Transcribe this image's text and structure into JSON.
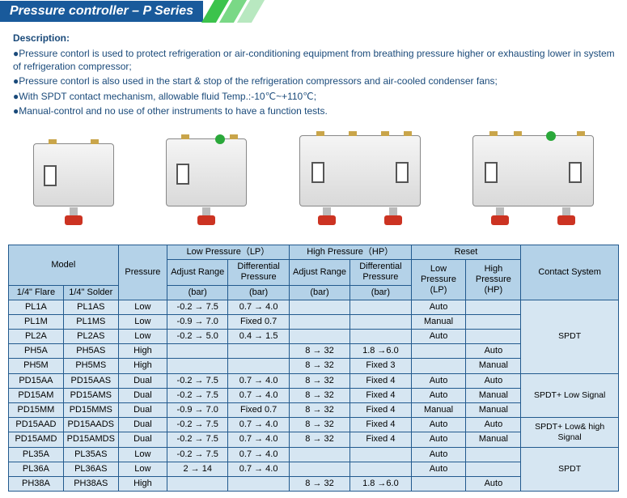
{
  "header": {
    "title": "Pressure controller – P Series"
  },
  "description": {
    "title": "Description:",
    "items": [
      "●Pressure contorl is used to protect refrigeration or air-conditioning equipment from breathing pressure higher or exhausting lower in system of refrigeration compressor;",
      "●Pressure contorl is also used in the start & stop of the refrigeration compressors and air-cooled condenser fans;",
      "●With SPDT contact mechanism, allowable fluid Temp.:-10℃~+110℃;",
      "●Manual-control and no use of other instruments to have a function tests."
    ]
  },
  "table": {
    "head": {
      "model": "Model",
      "pressure": "Pressure",
      "low_pressure": "Low Pressure（LP）",
      "high_pressure": "High Pressure（HP）",
      "reset": "Reset",
      "contact_system": "Contact System",
      "flare": "1/4\" Flare",
      "solder": "1/4\" Solder",
      "adjust_range": "Adjust Range",
      "diff_pressure": "Differential Pressure",
      "bar": "(bar)",
      "low_pressure_short": "Low Pressure (LP)",
      "high_pressure_short": "High Pressure (HP)"
    },
    "contact_groups": [
      {
        "label": "SPDT",
        "span": 5
      },
      {
        "label": "SPDT+ Low Signal",
        "span": 3
      },
      {
        "label": "SPDT+ Low& high Signal",
        "span": 2
      },
      {
        "label": "SPDT",
        "span": 3
      }
    ],
    "rows": [
      {
        "flare": "PL1A",
        "solder": "PL1AS",
        "pressure": "Low",
        "lp_adj": "-0.2 → 7.5",
        "lp_diff": "0.7 → 4.0",
        "hp_adj": "",
        "hp_diff": "",
        "reset_lp": "Auto",
        "reset_hp": ""
      },
      {
        "flare": "PL1M",
        "solder": "PL1MS",
        "pressure": "Low",
        "lp_adj": "-0.9 → 7.0",
        "lp_diff": "Fixed 0.7",
        "hp_adj": "",
        "hp_diff": "",
        "reset_lp": "Manual",
        "reset_hp": ""
      },
      {
        "flare": "PL2A",
        "solder": "PL2AS",
        "pressure": "Low",
        "lp_adj": "-0.2 → 5.0",
        "lp_diff": "0.4 → 1.5",
        "hp_adj": "",
        "hp_diff": "",
        "reset_lp": "Auto",
        "reset_hp": ""
      },
      {
        "flare": "PH5A",
        "solder": "PH5AS",
        "pressure": "High",
        "lp_adj": "",
        "lp_diff": "",
        "hp_adj": "8 → 32",
        "hp_diff": "1.8 →6.0",
        "reset_lp": "",
        "reset_hp": "Auto"
      },
      {
        "flare": "PH5M",
        "solder": "PH5MS",
        "pressure": "High",
        "lp_adj": "",
        "lp_diff": "",
        "hp_adj": "8 → 32",
        "hp_diff": "Fixed 3",
        "reset_lp": "",
        "reset_hp": "Manual"
      },
      {
        "flare": "PD15AA",
        "solder": "PD15AAS",
        "pressure": "Dual",
        "lp_adj": "-0.2 → 7.5",
        "lp_diff": "0.7 → 4.0",
        "hp_adj": "8 → 32",
        "hp_diff": "Fixed 4",
        "reset_lp": "Auto",
        "reset_hp": "Auto"
      },
      {
        "flare": "PD15AM",
        "solder": "PD15AMS",
        "pressure": "Dual",
        "lp_adj": "-0.2 → 7.5",
        "lp_diff": "0.7 → 4.0",
        "hp_adj": "8 → 32",
        "hp_diff": "Fixed 4",
        "reset_lp": "Auto",
        "reset_hp": "Manual"
      },
      {
        "flare": "PD15MM",
        "solder": "PD15MMS",
        "pressure": "Dual",
        "lp_adj": "-0.9 → 7.0",
        "lp_diff": "Fixed 0.7",
        "hp_adj": "8 → 32",
        "hp_diff": "Fixed 4",
        "reset_lp": "Manual",
        "reset_hp": "Manual"
      },
      {
        "flare": "PD15AAD",
        "solder": "PD15AADS",
        "pressure": "Dual",
        "lp_adj": "-0.2 → 7.5",
        "lp_diff": "0.7 → 4.0",
        "hp_adj": "8 → 32",
        "hp_diff": "Fixed 4",
        "reset_lp": "Auto",
        "reset_hp": "Auto"
      },
      {
        "flare": "PD15AMD",
        "solder": "PD15AMDS",
        "pressure": "Dual",
        "lp_adj": "-0.2 → 7.5",
        "lp_diff": "0.7 → 4.0",
        "hp_adj": "8 → 32",
        "hp_diff": "Fixed 4",
        "reset_lp": "Auto",
        "reset_hp": "Manual"
      },
      {
        "flare": "PL35A",
        "solder": "PL35AS",
        "pressure": "Low",
        "lp_adj": "-0.2 → 7.5",
        "lp_diff": "0.7 → 4.0",
        "hp_adj": "",
        "hp_diff": "",
        "reset_lp": "Auto",
        "reset_hp": ""
      },
      {
        "flare": "PL36A",
        "solder": "PL36AS",
        "pressure": "Low",
        "lp_adj": "2 → 14",
        "lp_diff": "0.7 → 4.0",
        "hp_adj": "",
        "hp_diff": "",
        "reset_lp": "Auto",
        "reset_hp": ""
      },
      {
        "flare": "PH38A",
        "solder": "PH38AS",
        "pressure": "High",
        "lp_adj": "",
        "lp_diff": "",
        "hp_adj": "8 → 32",
        "hp_diff": "1.8 →6.0",
        "reset_lp": "",
        "reset_hp": "Auto"
      }
    ]
  },
  "colors": {
    "header_bg": "#195a9b",
    "table_border": "#225a8e",
    "table_head_bg": "#b4d2e8",
    "table_body_bg": "#d6e6f2",
    "desc_color": "#1a4a7a",
    "stripe_colors": [
      "#3cc34c",
      "#7ad886",
      "#b8e8c0"
    ],
    "stem_cap": "#cc3322"
  }
}
